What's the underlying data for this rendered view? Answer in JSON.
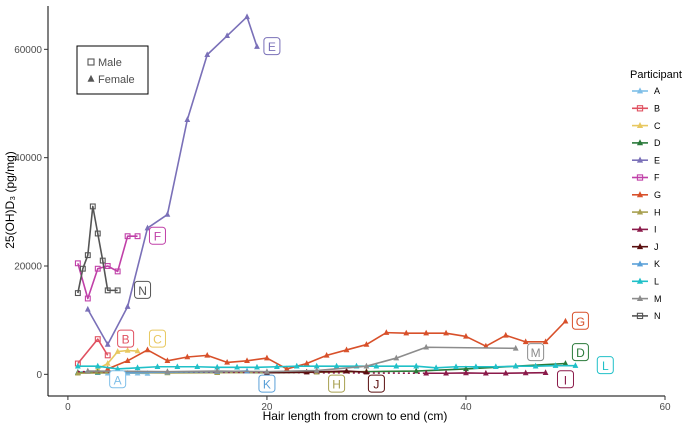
{
  "chart_data": {
    "type": "line",
    "xlabel": "Hair length from crown to end (cm)",
    "ylabel": "25(OH)D₃ (pg/mg)",
    "xlim": [
      -2,
      60
    ],
    "ylim": [
      -4000,
      68000
    ],
    "x_ticks": [
      0,
      20,
      40,
      60
    ],
    "y_ticks": [
      0,
      20000,
      40000,
      60000
    ],
    "grid": false,
    "legend": {
      "title": "Participant",
      "placement": "right"
    },
    "shape_key": [
      {
        "label": "Male",
        "marker": "square"
      },
      {
        "label": "Female",
        "marker": "triangle"
      }
    ],
    "series": [
      {
        "name": "A",
        "color": "#7fbfe8",
        "marker": "triangle",
        "x": [
          1,
          2,
          3,
          4,
          5,
          6,
          7,
          8
        ],
        "y": [
          400,
          500,
          300,
          200,
          300,
          200,
          200,
          150
        ],
        "dotted_start": [],
        "label_at": [
          5,
          -1000
        ]
      },
      {
        "name": "B",
        "color": "#e05060",
        "marker": "square",
        "x": [
          1,
          3,
          4
        ],
        "y": [
          2000,
          6500,
          3500
        ],
        "dotted_start": [
          1,
          2000
        ],
        "label_at": [
          5.8,
          6500
        ]
      },
      {
        "name": "C",
        "color": "#e8c860",
        "marker": "triangle",
        "x": [
          3,
          4,
          5,
          6,
          7
        ],
        "y": [
          1000,
          2000,
          4200,
          4400,
          4300
        ],
        "dotted_start": [],
        "label_at": [
          9,
          6500
        ]
      },
      {
        "name": "D",
        "color": "#2a7a3a",
        "marker": "triangle",
        "x": [
          1,
          3,
          5,
          10,
          15,
          20,
          25,
          30,
          35,
          40,
          45,
          50
        ],
        "y": [
          300,
          400,
          300,
          350,
          400,
          300,
          400,
          500,
          600,
          1000,
          1500,
          2000
        ],
        "dotted_start": [],
        "label_at": [
          51.5,
          4000
        ]
      },
      {
        "name": "E",
        "color": "#7a70b8",
        "marker": "triangle",
        "x": [
          2,
          4,
          6,
          8,
          10,
          12,
          14,
          16,
          18,
          19
        ],
        "y": [
          12000,
          5500,
          12500,
          27000,
          29500,
          47000,
          59000,
          62500,
          66000,
          60500
        ],
        "dotted_start": [],
        "label_at": [
          20.5,
          60500
        ]
      },
      {
        "name": "F",
        "color": "#c040a8",
        "marker": "square",
        "x": [
          1,
          2,
          3,
          4,
          5,
          6,
          7
        ],
        "y": [
          20500,
          14000,
          19500,
          20000,
          19000,
          25500,
          25500
        ],
        "dotted_start": [],
        "label_at": [
          9,
          25500
        ]
      },
      {
        "name": "G",
        "color": "#d8502a",
        "marker": "triangle",
        "x": [
          4,
          6,
          8,
          10,
          12,
          14,
          16,
          18,
          20,
          22,
          24,
          26,
          28,
          30,
          32,
          34,
          36,
          38,
          40,
          42,
          44,
          46,
          48,
          50
        ],
        "y": [
          1000,
          2500,
          4500,
          2500,
          3200,
          3500,
          2200,
          2500,
          3000,
          1000,
          2000,
          3500,
          4500,
          5500,
          7700,
          7600,
          7600,
          7600,
          7000,
          5200,
          7200,
          6000,
          6000,
          9800
        ],
        "dotted_start": [],
        "label_at": [
          51.5,
          9800
        ]
      },
      {
        "name": "H",
        "color": "#a8a050",
        "marker": "triangle",
        "x": [
          1,
          5,
          10,
          15,
          20,
          25,
          30
        ],
        "y": [
          200,
          300,
          250,
          300,
          350,
          400,
          500
        ],
        "dotted_start": [],
        "label_at": [
          27,
          -1800
        ]
      },
      {
        "name": "I",
        "color": "#8b1a4a",
        "marker": "triangle",
        "x": [
          36,
          38,
          40,
          42,
          44,
          46,
          48
        ],
        "y": [
          200,
          200,
          250,
          200,
          200,
          250,
          300
        ],
        "dotted_start": [
          1,
          500
        ],
        "label_at": [
          50,
          -1000
        ]
      },
      {
        "name": "J",
        "color": "#5a0f0f",
        "marker": "triangle",
        "x": [
          20,
          24,
          28,
          30
        ],
        "y": [
          300,
          400,
          600,
          400
        ],
        "dotted_start": [],
        "label_at": [
          31,
          -1800
        ]
      },
      {
        "name": "K",
        "color": "#5aa0d8",
        "marker": "triangle",
        "x": [
          5,
          10,
          15,
          18
        ],
        "y": [
          300,
          400,
          500,
          600
        ],
        "dotted_start": [],
        "label_at": [
          20,
          -1800
        ]
      },
      {
        "name": "L",
        "color": "#20c0c8",
        "marker": "triangle",
        "x": [
          1,
          3,
          5,
          7,
          9,
          11,
          13,
          15,
          17,
          19,
          21,
          23,
          25,
          27,
          29,
          31,
          33,
          35,
          37,
          39,
          41,
          43,
          45,
          47,
          49,
          51
        ],
        "y": [
          1500,
          1500,
          1000,
          1200,
          1400,
          1400,
          1400,
          1300,
          1300,
          1300,
          1400,
          1500,
          1500,
          1500,
          1500,
          1500,
          1500,
          1500,
          1200,
          1400,
          1400,
          1400,
          1500,
          1500,
          1600,
          1600
        ],
        "dotted_start": [],
        "label_at": [
          54,
          1600
        ]
      },
      {
        "name": "M",
        "color": "#8c8c8c",
        "marker": "triangle",
        "x": [
          2,
          10,
          15,
          20,
          25,
          30,
          33,
          36,
          45
        ],
        "y": [
          600,
          500,
          600,
          500,
          700,
          1500,
          3000,
          5000,
          4800
        ],
        "dotted_start": [],
        "label_at": [
          47,
          4000
        ]
      },
      {
        "name": "N",
        "color": "#555555",
        "marker": "square",
        "x": [
          1,
          1.5,
          2,
          2.5,
          3,
          3.5,
          4,
          5
        ],
        "y": [
          15000,
          19500,
          22000,
          31000,
          26000,
          21000,
          15500,
          15500
        ],
        "dotted_start": [],
        "label_at": [
          7.5,
          15500
        ]
      }
    ]
  }
}
